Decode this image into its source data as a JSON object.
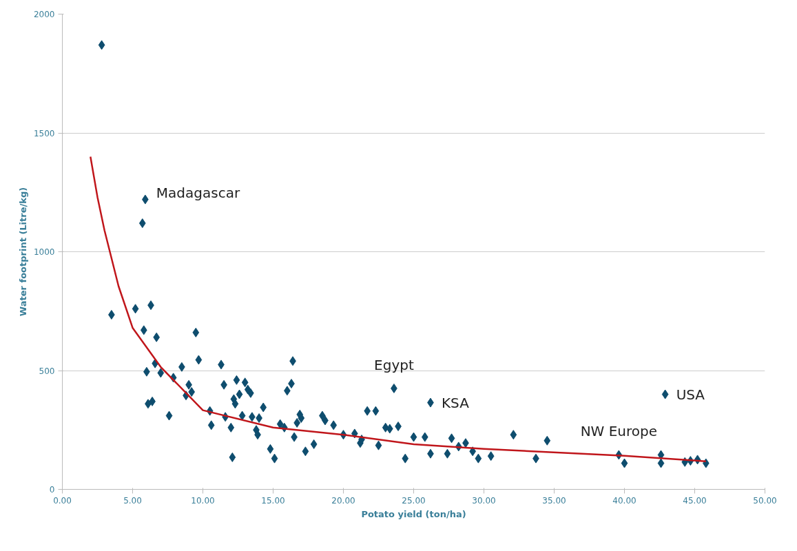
{
  "chart_data": {
    "type": "scatter",
    "xlabel": "Potato yield (ton/ha)",
    "ylabel": "Water footprint (Litre/kg)",
    "xlim": [
      0,
      50
    ],
    "ylim": [
      0,
      2000
    ],
    "xticks": [
      {
        "value": 0,
        "label": "0.00"
      },
      {
        "value": 5,
        "label": "5.00"
      },
      {
        "value": 10,
        "label": "10.00"
      },
      {
        "value": 15,
        "label": "15.00"
      },
      {
        "value": 20,
        "label": "20.00"
      },
      {
        "value": 25,
        "label": "25.00"
      },
      {
        "value": 30,
        "label": "30.00"
      },
      {
        "value": 35,
        "label": "35.00"
      },
      {
        "value": 40,
        "label": "40.00"
      },
      {
        "value": 45,
        "label": "45.00"
      },
      {
        "value": 50,
        "label": "50.00"
      }
    ],
    "yticks": [
      0,
      500,
      1000,
      1500,
      2000
    ],
    "grid": "y",
    "series": [
      {
        "marker": "diamond",
        "color": "#0e4d6e",
        "x": [
          2.8,
          3.5,
          5.2,
          5.7,
          5.9,
          5.8,
          6.3,
          6.0,
          6.1,
          6.4,
          6.7,
          6.6,
          7.0,
          7.6,
          7.9,
          8.5,
          8.8,
          9.0,
          9.2,
          9.5,
          9.7,
          10.5,
          10.6,
          11.3,
          11.5,
          11.6,
          12.0,
          12.1,
          12.2,
          12.3,
          12.4,
          12.6,
          12.8,
          13.0,
          13.2,
          13.4,
          13.5,
          13.8,
          13.9,
          14.0,
          14.3,
          14.8,
          15.1,
          15.5,
          15.8,
          16.0,
          16.3,
          16.4,
          16.5,
          16.7,
          16.9,
          17.0,
          17.3,
          17.9,
          18.5,
          18.7,
          19.3,
          20.0,
          20.8,
          21.2,
          21.3,
          21.7,
          22.3,
          22.5,
          23.0,
          23.3,
          23.6,
          23.9,
          24.4,
          25.0,
          25.8,
          26.2,
          26.2,
          27.4,
          27.7,
          28.2,
          28.7,
          29.2,
          29.6,
          30.5,
          32.1,
          33.7,
          34.5,
          39.6,
          40.0,
          42.6,
          42.6,
          42.9,
          44.3,
          44.7,
          45.2,
          45.8
        ],
        "values": [
          1870,
          735,
          760,
          1120,
          1220,
          670,
          775,
          495,
          360,
          370,
          640,
          530,
          490,
          310,
          470,
          515,
          395,
          440,
          410,
          660,
          545,
          330,
          270,
          525,
          440,
          305,
          260,
          135,
          380,
          360,
          460,
          400,
          310,
          450,
          420,
          405,
          305,
          250,
          230,
          300,
          345,
          170,
          130,
          275,
          260,
          415,
          445,
          540,
          220,
          280,
          315,
          300,
          160,
          190,
          310,
          290,
          270,
          230,
          235,
          195,
          210,
          330,
          330,
          185,
          260,
          255,
          425,
          265,
          130,
          220,
          220,
          150,
          365,
          150,
          215,
          180,
          195,
          160,
          130,
          140,
          230,
          130,
          205,
          145,
          110,
          145,
          110,
          400,
          115,
          120,
          125,
          110
        ]
      },
      {
        "type": "line",
        "color": "#c0161b",
        "line_style": "solid",
        "marker": "none",
        "x": [
          2.0,
          2.5,
          3,
          4,
          5,
          7,
          10,
          15,
          20,
          25,
          30,
          40,
          45.8
        ],
        "values": [
          1400,
          1230,
          1090,
          855,
          680,
          515,
          333,
          260,
          230,
          190,
          170,
          141,
          118
        ]
      }
    ],
    "annotations": [
      {
        "text": "Madagascar",
        "x": 5.9,
        "y": 1220
      },
      {
        "text": "Egypt",
        "x": 23.6,
        "y": 425
      },
      {
        "text": "KSA",
        "x": 26.2,
        "y": 365
      },
      {
        "text": "USA",
        "x": 42.9,
        "y": 400
      },
      {
        "text": "NW Europe",
        "x": 39.6,
        "y": 145
      }
    ]
  }
}
